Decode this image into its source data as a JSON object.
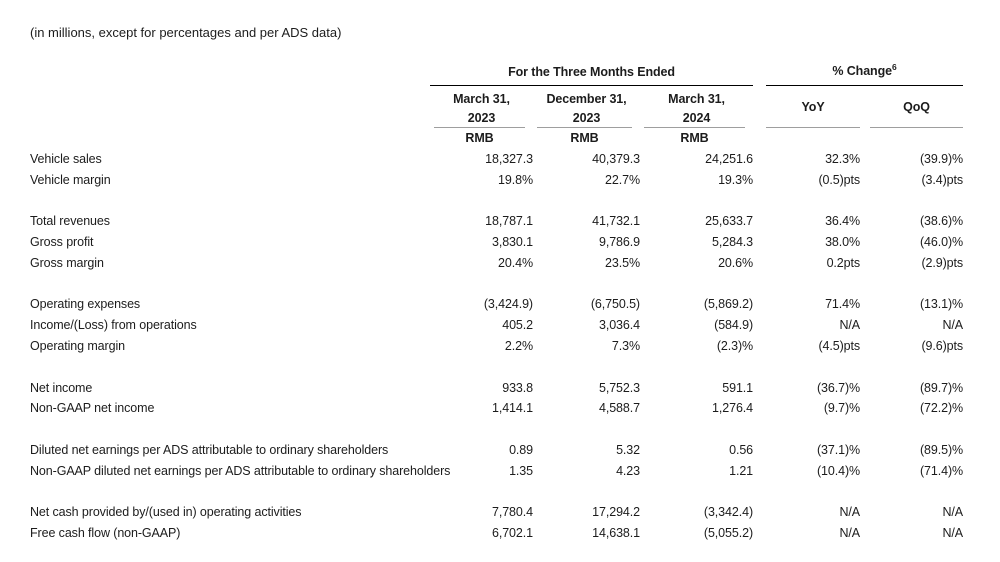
{
  "note": "(in millions, except for percentages and per ADS data)",
  "colors": {
    "text": "#1c1c1c",
    "rule_dark": "#000000",
    "rule_light": "#9e9e9e"
  },
  "table": {
    "group1": {
      "label": "For the Three Months Ended"
    },
    "group2": {
      "label": "% Change",
      "sup": "6"
    },
    "columns": {
      "c1": {
        "line1": "March 31,",
        "line2": "2023",
        "unit": "RMB"
      },
      "c2": {
        "line1": "December 31,",
        "line2": "2023",
        "unit": "RMB"
      },
      "c3": {
        "line1": "March 31,",
        "line2": "2024",
        "unit": "RMB"
      },
      "yoy": {
        "label": "YoY"
      },
      "qoq": {
        "label": "QoQ"
      }
    },
    "rows": [
      {
        "label": "Vehicle sales",
        "values": [
          "18,327.3",
          "40,379.3",
          "24,251.6",
          "32.3%",
          "(39.9)%"
        ]
      },
      {
        "label": "Vehicle margin",
        "values": [
          "19.8%",
          "22.7%",
          "19.3%",
          "(0.5)pts",
          "(3.4)pts"
        ]
      },
      {
        "spacer": true
      },
      {
        "label": "Total revenues",
        "values": [
          "18,787.1",
          "41,732.1",
          "25,633.7",
          "36.4%",
          "(38.6)%"
        ]
      },
      {
        "label": "Gross profit",
        "values": [
          "3,830.1",
          "9,786.9",
          "5,284.3",
          "38.0%",
          "(46.0)%"
        ]
      },
      {
        "label": "Gross margin",
        "values": [
          "20.4%",
          "23.5%",
          "20.6%",
          "0.2pts",
          "(2.9)pts"
        ]
      },
      {
        "spacer": true
      },
      {
        "label": "Operating expenses",
        "values": [
          "(3,424.9)",
          "(6,750.5)",
          "(5,869.2)",
          "71.4%",
          "(13.1)%"
        ]
      },
      {
        "label": "Income/(Loss) from operations",
        "values": [
          "405.2",
          "3,036.4",
          "(584.9)",
          "N/A",
          "N/A"
        ]
      },
      {
        "label": "Operating margin",
        "values": [
          "2.2%",
          "7.3%",
          "(2.3)%",
          "(4.5)pts",
          "(9.6)pts"
        ]
      },
      {
        "spacer": true
      },
      {
        "label": "Net income",
        "values": [
          "933.8",
          "5,752.3",
          "591.1",
          "(36.7)%",
          "(89.7)%"
        ]
      },
      {
        "label": "Non-GAAP net income",
        "values": [
          "1,414.1",
          "4,588.7",
          "1,276.4",
          "(9.7)%",
          "(72.2)%"
        ]
      },
      {
        "spacer": true
      },
      {
        "label": "Diluted net earnings per ADS attributable to ordinary shareholders",
        "values": [
          "0.89",
          "5.32",
          "0.56",
          "(37.1)%",
          "(89.5)%"
        ]
      },
      {
        "label": "Non-GAAP diluted net earnings per ADS attributable to ordinary shareholders",
        "values": [
          "1.35",
          "4.23",
          "1.21",
          "(10.4)%",
          "(71.4)%"
        ]
      },
      {
        "spacer": true
      },
      {
        "label": "Net cash provided by/(used in) operating activities",
        "values": [
          "7,780.4",
          "17,294.2",
          "(3,342.4)",
          "N/A",
          "N/A"
        ]
      },
      {
        "label": "Free cash flow (non-GAAP)",
        "values": [
          "6,702.1",
          "14,638.1",
          "(5,055.2)",
          "N/A",
          "N/A"
        ]
      }
    ]
  }
}
